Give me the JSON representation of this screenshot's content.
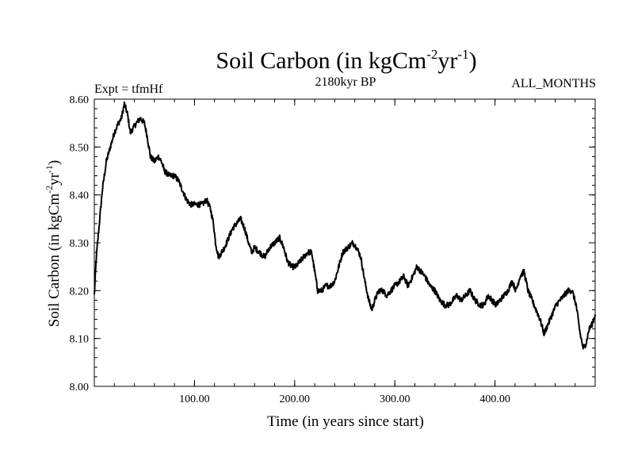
{
  "chart_data": {
    "type": "line",
    "title": {
      "prefix": "Soil Carbon (in kgCm",
      "sup1": "-2",
      "mid": "yr",
      "sup2": "-1",
      "suffix": ")"
    },
    "experiment_label": "Expt = tfmHf",
    "period_label": "2180kyr BP",
    "months_label": "ALL_MONTHS",
    "xlabel": "Time (in years since start)",
    "ylabel": {
      "prefix": "Soil Carbon (in kgCm",
      "sup1": "-2",
      "mid": "yr",
      "sup2": "-1",
      "suffix": ")"
    },
    "xlim": [
      0,
      500
    ],
    "ylim": [
      8.0,
      8.6
    ],
    "x_ticks": [
      {
        "value": 100,
        "label": "100.00"
      },
      {
        "value": 200,
        "label": "200.00"
      },
      {
        "value": 300,
        "label": "300.00"
      },
      {
        "value": 400,
        "label": "400.00"
      }
    ],
    "y_ticks": [
      {
        "value": 8.0,
        "label": "8.00"
      },
      {
        "value": 8.1,
        "label": "8.10"
      },
      {
        "value": 8.2,
        "label": "8.20"
      },
      {
        "value": 8.3,
        "label": "8.30"
      },
      {
        "value": 8.4,
        "label": "8.40"
      },
      {
        "value": 8.5,
        "label": "8.50"
      },
      {
        "value": 8.6,
        "label": "8.60"
      }
    ],
    "series": [
      {
        "name": "Soil Carbon",
        "color": "#000000",
        "noise_amplitude": 0.006,
        "points": [
          [
            0,
            8.19
          ],
          [
            2,
            8.27
          ],
          [
            5,
            8.34
          ],
          [
            8,
            8.41
          ],
          [
            12,
            8.47
          ],
          [
            16,
            8.5
          ],
          [
            20,
            8.53
          ],
          [
            24,
            8.55
          ],
          [
            27,
            8.56
          ],
          [
            30,
            8.59
          ],
          [
            33,
            8.57
          ],
          [
            36,
            8.53
          ],
          [
            39,
            8.54
          ],
          [
            42,
            8.55
          ],
          [
            46,
            8.56
          ],
          [
            50,
            8.55
          ],
          [
            53,
            8.52
          ],
          [
            56,
            8.48
          ],
          [
            60,
            8.47
          ],
          [
            64,
            8.48
          ],
          [
            67,
            8.47
          ],
          [
            70,
            8.45
          ],
          [
            75,
            8.44
          ],
          [
            80,
            8.44
          ],
          [
            84,
            8.43
          ],
          [
            88,
            8.41
          ],
          [
            92,
            8.39
          ],
          [
            96,
            8.38
          ],
          [
            100,
            8.38
          ],
          [
            104,
            8.38
          ],
          [
            108,
            8.38
          ],
          [
            112,
            8.39
          ],
          [
            116,
            8.37
          ],
          [
            119,
            8.34
          ],
          [
            121,
            8.3
          ],
          [
            124,
            8.27
          ],
          [
            127,
            8.28
          ],
          [
            130,
            8.29
          ],
          [
            134,
            8.31
          ],
          [
            138,
            8.33
          ],
          [
            142,
            8.34
          ],
          [
            146,
            8.35
          ],
          [
            150,
            8.33
          ],
          [
            154,
            8.3
          ],
          [
            157,
            8.28
          ],
          [
            160,
            8.29
          ],
          [
            165,
            8.28
          ],
          [
            170,
            8.27
          ],
          [
            175,
            8.29
          ],
          [
            180,
            8.3
          ],
          [
            185,
            8.31
          ],
          [
            189,
            8.29
          ],
          [
            193,
            8.26
          ],
          [
            197,
            8.25
          ],
          [
            201,
            8.25
          ],
          [
            205,
            8.26
          ],
          [
            209,
            8.27
          ],
          [
            213,
            8.28
          ],
          [
            217,
            8.28
          ],
          [
            220,
            8.24
          ],
          [
            223,
            8.2
          ],
          [
            227,
            8.2
          ],
          [
            231,
            8.21
          ],
          [
            236,
            8.21
          ],
          [
            240,
            8.22
          ],
          [
            244,
            8.25
          ],
          [
            248,
            8.28
          ],
          [
            253,
            8.29
          ],
          [
            258,
            8.3
          ],
          [
            262,
            8.29
          ],
          [
            266,
            8.27
          ],
          [
            270,
            8.22
          ],
          [
            274,
            8.18
          ],
          [
            277,
            8.16
          ],
          [
            280,
            8.18
          ],
          [
            284,
            8.2
          ],
          [
            288,
            8.2
          ],
          [
            292,
            8.19
          ],
          [
            296,
            8.2
          ],
          [
            300,
            8.21
          ],
          [
            305,
            8.22
          ],
          [
            309,
            8.23
          ],
          [
            313,
            8.21
          ],
          [
            318,
            8.23
          ],
          [
            322,
            8.25
          ],
          [
            326,
            8.24
          ],
          [
            330,
            8.23
          ],
          [
            335,
            8.21
          ],
          [
            340,
            8.2
          ],
          [
            345,
            8.18
          ],
          [
            350,
            8.17
          ],
          [
            354,
            8.17
          ],
          [
            358,
            8.18
          ],
          [
            362,
            8.19
          ],
          [
            366,
            8.18
          ],
          [
            371,
            8.19
          ],
          [
            375,
            8.2
          ],
          [
            380,
            8.18
          ],
          [
            385,
            8.17
          ],
          [
            389,
            8.17
          ],
          [
            393,
            8.19
          ],
          [
            397,
            8.18
          ],
          [
            401,
            8.17
          ],
          [
            405,
            8.18
          ],
          [
            409,
            8.19
          ],
          [
            413,
            8.2
          ],
          [
            417,
            8.22
          ],
          [
            421,
            8.2
          ],
          [
            425,
            8.23
          ],
          [
            429,
            8.24
          ],
          [
            433,
            8.2
          ],
          [
            437,
            8.18
          ],
          [
            441,
            8.16
          ],
          [
            445,
            8.14
          ],
          [
            449,
            8.11
          ],
          [
            453,
            8.13
          ],
          [
            457,
            8.15
          ],
          [
            461,
            8.17
          ],
          [
            465,
            8.18
          ],
          [
            469,
            8.19
          ],
          [
            473,
            8.2
          ],
          [
            477,
            8.2
          ],
          [
            481,
            8.17
          ],
          [
            485,
            8.11
          ],
          [
            488,
            8.08
          ],
          [
            491,
            8.09
          ],
          [
            494,
            8.12
          ],
          [
            497,
            8.13
          ],
          [
            500,
            8.15
          ]
        ]
      }
    ]
  }
}
